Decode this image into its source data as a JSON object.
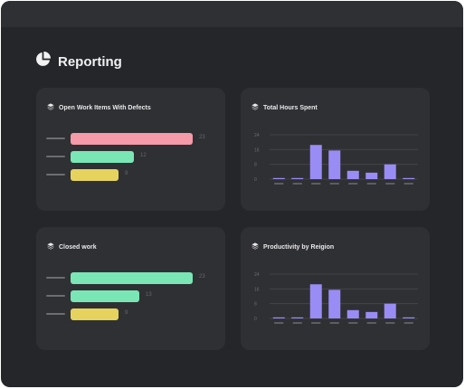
{
  "app": {
    "title": "Reporting"
  },
  "colors": {
    "pink": "#f49aa8",
    "green": "#7ae6b6",
    "yellow": "#e6d35e",
    "purple": "#9a8cf5"
  },
  "cards": {
    "open_work": {
      "title": "Open Work Items With Defects"
    },
    "total_hours": {
      "title": "Total Hours Spent"
    },
    "closed_work": {
      "title": "Closed work"
    },
    "productivity": {
      "title": "Productivity by Reigion"
    }
  },
  "chart_data": [
    {
      "type": "bar",
      "orientation": "horizontal",
      "title": "Open Work Items With Defects",
      "categories": [
        "",
        "",
        ""
      ],
      "values": [
        23,
        12,
        9
      ],
      "value_labels": [
        "23",
        "12",
        "9"
      ],
      "colors": [
        "#f49aa8",
        "#7ae6b6",
        "#e6d35e"
      ],
      "xlim": [
        0,
        23
      ]
    },
    {
      "type": "bar",
      "title": "Total Hours Spent",
      "categories": [
        "",
        "",
        "",
        "",
        "",
        "",
        "",
        ""
      ],
      "values": [
        0.4,
        0.4,
        18.5,
        15.5,
        4.5,
        3.5,
        8,
        0.4
      ],
      "yticks": [
        "24",
        "16",
        "8",
        "0"
      ],
      "ylim": [
        0,
        24
      ],
      "grid": true,
      "color": "#9a8cf5"
    },
    {
      "type": "bar",
      "orientation": "horizontal",
      "title": "Closed work",
      "categories": [
        "",
        "",
        ""
      ],
      "values": [
        23,
        13,
        9
      ],
      "value_labels": [
        "23",
        "13",
        "9"
      ],
      "colors": [
        "#7ae6b6",
        "#7ae6b6",
        "#e6d35e"
      ],
      "xlim": [
        0,
        23
      ]
    },
    {
      "type": "bar",
      "title": "Productivity by Reigion",
      "categories": [
        "",
        "",
        "",
        "",
        "",
        "",
        "",
        ""
      ],
      "values": [
        0.4,
        0.4,
        18.5,
        15.5,
        4.5,
        3.5,
        8,
        0.4
      ],
      "yticks": [
        "24",
        "16",
        "8",
        "0"
      ],
      "ylim": [
        0,
        24
      ],
      "grid": true,
      "color": "#9a8cf5"
    }
  ]
}
